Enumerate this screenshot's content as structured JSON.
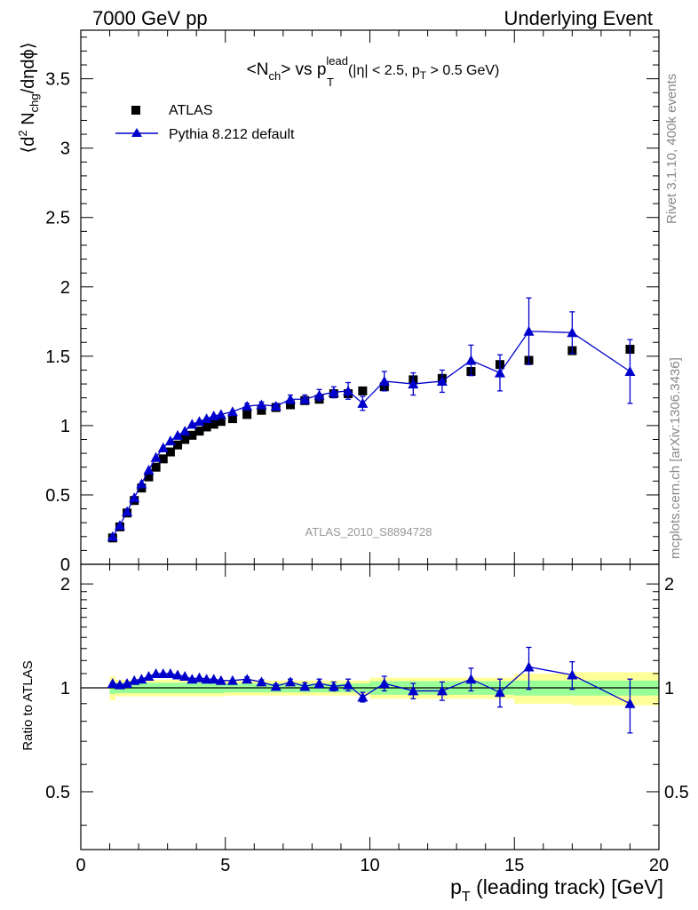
{
  "header": {
    "left": "7000 GeV pp",
    "right": "Underlying Event"
  },
  "side_labels": {
    "rivet": "Rivet 3.1.10,  400k events",
    "mcplots": "mcplots.cern.ch [arXiv:1306.3436]"
  },
  "chart_data": [
    {
      "type": "scatter",
      "title": "<N_ch> vs p_T^lead (|η| < 2.5, p_T > 0.5 GeV)",
      "title_parts": {
        "pre": "<N",
        "sub1": "ch",
        "mid": "> vs p",
        "sup2": "lead",
        "sub2": "T",
        "post": "(|η| < 2.5, p",
        "sub3": "T",
        "end": " > 0.5 GeV)"
      },
      "ylabel": "⟨d² N_chg/dηdϕ⟩",
      "ylabel_parts": {
        "a": "⟨d",
        "sup": "2",
        "b": " N",
        "sub": "chg",
        "c": "/dηdϕ⟩"
      },
      "xlim": [
        0,
        20
      ],
      "ylim": [
        0,
        3.85
      ],
      "yticks": [
        "0",
        "0.5",
        "1",
        "1.5",
        "2",
        "2.5",
        "3",
        "3.5"
      ],
      "watermark": "ATLAS_2010_S8894728",
      "legend_position": "top-left",
      "series": [
        {
          "name": "ATLAS",
          "marker": "square",
          "color": "#000000",
          "x": [
            1.1,
            1.35,
            1.6,
            1.85,
            2.1,
            2.35,
            2.6,
            2.85,
            3.1,
            3.35,
            3.6,
            3.85,
            4.1,
            4.35,
            4.6,
            4.85,
            5.25,
            5.75,
            6.25,
            6.75,
            7.25,
            7.75,
            8.25,
            8.75,
            9.25,
            9.75,
            10.5,
            11.5,
            12.5,
            13.5,
            14.5,
            15.5,
            17.0,
            19.0
          ],
          "y": [
            0.19,
            0.27,
            0.37,
            0.46,
            0.55,
            0.63,
            0.7,
            0.76,
            0.81,
            0.86,
            0.9,
            0.93,
            0.96,
            0.99,
            1.01,
            1.03,
            1.05,
            1.08,
            1.11,
            1.13,
            1.15,
            1.18,
            1.19,
            1.23,
            1.23,
            1.25,
            1.28,
            1.33,
            1.34,
            1.39,
            1.44,
            1.47,
            1.54,
            1.55
          ]
        },
        {
          "name": "Pythia 8.212 default",
          "marker": "triangle",
          "color": "#0000cc",
          "x": [
            1.1,
            1.35,
            1.6,
            1.85,
            2.1,
            2.35,
            2.6,
            2.85,
            3.1,
            3.35,
            3.6,
            3.85,
            4.1,
            4.35,
            4.6,
            4.85,
            5.25,
            5.75,
            6.25,
            6.75,
            7.25,
            7.75,
            8.25,
            8.75,
            9.25,
            9.75,
            10.5,
            11.5,
            12.5,
            13.5,
            14.5,
            15.5,
            17.0,
            19.0
          ],
          "y": [
            0.2,
            0.28,
            0.38,
            0.48,
            0.58,
            0.68,
            0.77,
            0.84,
            0.89,
            0.93,
            0.96,
            1.01,
            1.03,
            1.05,
            1.07,
            1.08,
            1.1,
            1.14,
            1.15,
            1.14,
            1.19,
            1.19,
            1.22,
            1.24,
            1.25,
            1.16,
            1.32,
            1.3,
            1.32,
            1.47,
            1.38,
            1.68,
            1.67,
            1.39
          ],
          "yerr": [
            0.005,
            0.005,
            0.005,
            0.005,
            0.005,
            0.005,
            0.005,
            0.005,
            0.005,
            0.005,
            0.005,
            0.005,
            0.005,
            0.005,
            0.005,
            0.005,
            0.01,
            0.02,
            0.02,
            0.02,
            0.03,
            0.03,
            0.04,
            0.04,
            0.06,
            0.05,
            0.07,
            0.08,
            0.08,
            0.11,
            0.13,
            0.24,
            0.15,
            0.23
          ]
        }
      ]
    },
    {
      "type": "scatter",
      "ylabel": "Ratio to ATLAS",
      "xlabel": "p_T (leading track) [GeV]",
      "xlabel_parts": {
        "a": "p",
        "sub": "T",
        "b": " (leading track) [GeV]"
      },
      "xlim": [
        0,
        20
      ],
      "ylim": [
        0.34,
        2.28
      ],
      "yscale": "log",
      "xticks": [
        "0",
        "5",
        "10",
        "15",
        "20"
      ],
      "yticks": [
        "0.5",
        "1",
        "2"
      ],
      "bands": {
        "x_edges": [
          1.0,
          1.2,
          5.0,
          10.0,
          15.0,
          17.0,
          20.0
        ],
        "green_low": [
          0.96,
          0.965,
          0.97,
          0.955,
          0.95,
          0.95
        ],
        "green_high": [
          1.04,
          1.035,
          1.03,
          1.045,
          1.05,
          1.05
        ],
        "yellow_low": [
          0.92,
          0.945,
          0.95,
          0.93,
          0.9,
          0.89
        ],
        "yellow_high": [
          1.08,
          1.055,
          1.05,
          1.07,
          1.1,
          1.11
        ],
        "green_color": "#99ff99",
        "yellow_color": "#ffff99"
      },
      "series": [
        {
          "name": "Pythia 8.212 default",
          "color": "#0000cc",
          "x": [
            1.1,
            1.35,
            1.6,
            1.85,
            2.1,
            2.35,
            2.6,
            2.85,
            3.1,
            3.35,
            3.6,
            3.85,
            4.1,
            4.35,
            4.6,
            4.85,
            5.25,
            5.75,
            6.25,
            6.75,
            7.25,
            7.75,
            8.25,
            8.75,
            9.25,
            9.75,
            10.5,
            11.5,
            12.5,
            13.5,
            14.5,
            15.5,
            17.0,
            19.0
          ],
          "y": [
            1.03,
            1.02,
            1.03,
            1.05,
            1.06,
            1.08,
            1.1,
            1.1,
            1.1,
            1.09,
            1.08,
            1.06,
            1.07,
            1.06,
            1.06,
            1.05,
            1.05,
            1.06,
            1.04,
            1.01,
            1.04,
            1.01,
            1.03,
            1.01,
            1.02,
            0.94,
            1.03,
            0.98,
            0.98,
            1.06,
            0.97,
            1.15,
            1.09,
            0.9
          ],
          "yerr": [
            0.005,
            0.005,
            0.005,
            0.005,
            0.005,
            0.005,
            0.005,
            0.005,
            0.005,
            0.005,
            0.005,
            0.005,
            0.005,
            0.005,
            0.005,
            0.005,
            0.01,
            0.015,
            0.015,
            0.015,
            0.02,
            0.025,
            0.03,
            0.03,
            0.04,
            0.03,
            0.05,
            0.05,
            0.06,
            0.08,
            0.09,
            0.16,
            0.1,
            0.16
          ]
        }
      ]
    }
  ]
}
